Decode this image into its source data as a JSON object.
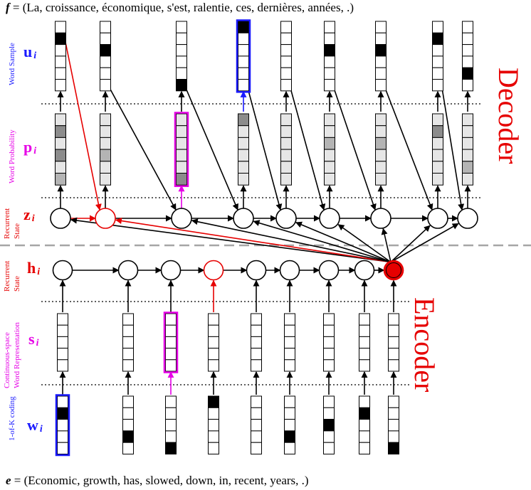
{
  "top_sentence": {
    "symbol": "f",
    "prefix": " = (",
    "tokens": [
      "La",
      "croissance",
      "économique",
      "s'est",
      "ralentie",
      "ces",
      "dernières",
      "années",
      "."
    ],
    "suffix": ")"
  },
  "bottom_sentence": {
    "symbol": "e",
    "prefix": " = (",
    "tokens": [
      "Economic",
      "growth",
      "has",
      "slowed",
      "down",
      "in",
      "recent",
      "years",
      "."
    ],
    "suffix": ")"
  },
  "sections": {
    "decoder": "Decoder",
    "encoder": "Encoder"
  },
  "rows": {
    "u": {
      "symbol": "u",
      "subscript": "i",
      "caption": [
        "Word Sample"
      ],
      "color": "#1a1aff"
    },
    "p": {
      "symbol": "p",
      "subscript": "i",
      "caption": [
        "Word Probability"
      ],
      "color": "#e600e6"
    },
    "z": {
      "symbol": "z",
      "subscript": "i",
      "caption": [
        "Recurrent",
        "State"
      ],
      "color": "#e60000"
    },
    "h": {
      "symbol": "h",
      "subscript": "i",
      "caption": [
        "Recurrent",
        "State"
      ],
      "color": "#e60000"
    },
    "s": {
      "symbol": "s",
      "subscript": "i",
      "caption": [
        "Continuous-space",
        "Word Representation"
      ],
      "color": "#e600e6"
    },
    "w": {
      "symbol": "w",
      "subscript": "i",
      "caption": [
        "1-of-K coding"
      ],
      "color": "#1a1aff"
    }
  },
  "colors": {
    "accent_red": "#e60000",
    "accent_magenta": "#e600e6",
    "accent_blue": "#1a1aff",
    "grey_dark": "#8c8c8c",
    "grey_mid": "#b4b4b4",
    "grey_light": "#e6e6e6",
    "separator": "#a6a6a6"
  }
}
